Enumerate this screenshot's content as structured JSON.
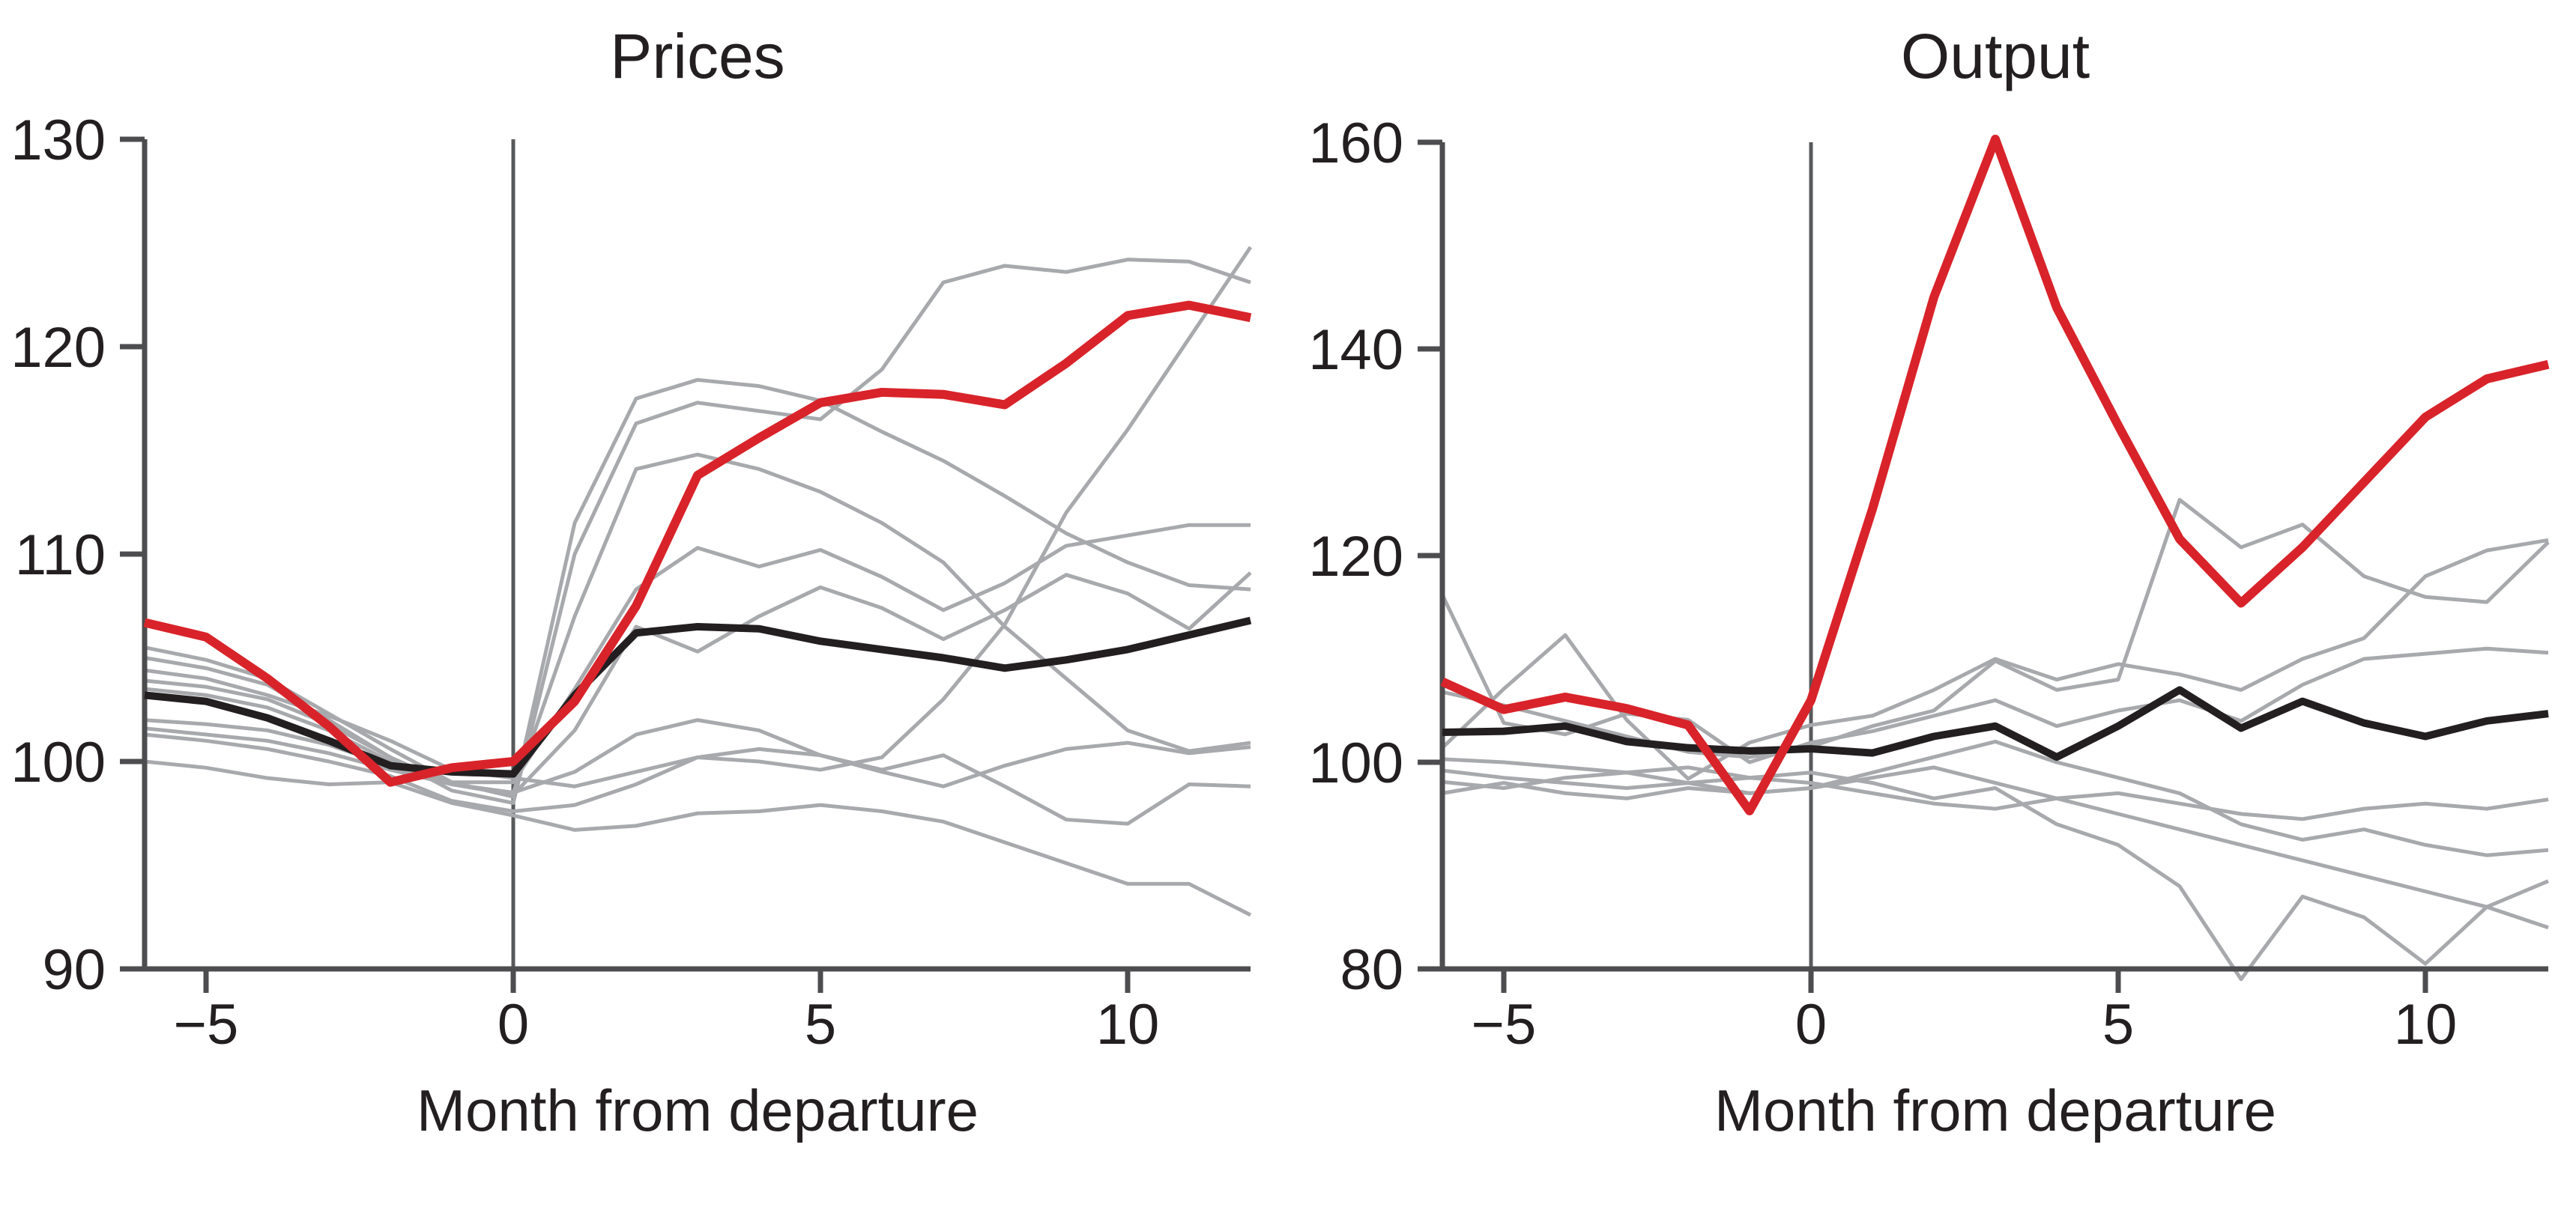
{
  "figure": {
    "description": "Two-panel line chart of Prices and Output indexed around month of departure; many gray episode lines, a black average line, and one highlighted red episode.",
    "panel_count": 2
  },
  "colors": {
    "highlight": "#d9232a",
    "average": "#231f20",
    "episode": "#a7a9ac",
    "axis": "#4d4d4f",
    "event_line": "#58595b",
    "background": "#ffffff"
  },
  "chart_data": [
    {
      "type": "line",
      "title": "Prices",
      "xlabel": "Month from departure",
      "ylabel": "",
      "x": [
        -6,
        -5,
        -4,
        -3,
        -2,
        -1,
        0,
        1,
        2,
        3,
        4,
        5,
        6,
        7,
        8,
        9,
        10,
        11,
        12
      ],
      "xlim": [
        -6,
        12
      ],
      "ylim": [
        90,
        130
      ],
      "xticks": [
        -5,
        0,
        5,
        10
      ],
      "yticks": [
        90,
        100,
        110,
        120,
        130
      ],
      "grid": false,
      "legend": "none",
      "vline_x": 0,
      "series": [
        {
          "name": "episode-a",
          "role": "background",
          "color": "#a7a9ac",
          "values": [
            105.5,
            104.9,
            104.0,
            102.3,
            100.6,
            99.0,
            98.3,
            111.5,
            117.5,
            118.4,
            118.1,
            117.4,
            115.9,
            114.5,
            112.8,
            111.0,
            109.6,
            108.5,
            108.3
          ]
        },
        {
          "name": "episode-b",
          "role": "background",
          "color": "#a7a9ac",
          "values": [
            105.0,
            104.5,
            103.7,
            102.0,
            100.2,
            98.6,
            98.0,
            110.0,
            116.3,
            117.3,
            116.9,
            116.5,
            118.9,
            123.1,
            123.9,
            123.6,
            124.2,
            124.1,
            123.1
          ]
        },
        {
          "name": "episode-c",
          "role": "background",
          "color": "#a7a9ac",
          "values": [
            104.4,
            104.0,
            103.2,
            102.2,
            101.0,
            99.6,
            99.2,
            98.8,
            99.5,
            100.2,
            100.0,
            99.6,
            100.2,
            103.0,
            106.6,
            112.0,
            116.0,
            120.4,
            124.8
          ]
        },
        {
          "name": "episode-d",
          "role": "background",
          "color": "#a7a9ac",
          "values": [
            103.9,
            103.6,
            103.0,
            101.8,
            100.2,
            98.9,
            98.5,
            107.0,
            114.1,
            114.8,
            114.1,
            113.0,
            111.5,
            109.6,
            106.5,
            104.0,
            101.5,
            100.5,
            100.9
          ]
        },
        {
          "name": "episode-e",
          "role": "background",
          "color": "#a7a9ac",
          "values": [
            103.5,
            103.2,
            102.6,
            101.5,
            100.0,
            99.0,
            99.0,
            103.5,
            108.3,
            110.3,
            109.4,
            110.2,
            108.9,
            107.3,
            108.6,
            110.4,
            110.9,
            111.4,
            111.4
          ]
        },
        {
          "name": "episode-f",
          "role": "background",
          "color": "#a7a9ac",
          "values": [
            102.0,
            101.8,
            101.5,
            100.8,
            99.8,
            98.9,
            98.4,
            101.5,
            106.5,
            105.3,
            107.0,
            108.4,
            107.4,
            105.9,
            107.3,
            109.0,
            108.1,
            106.4,
            109.1
          ]
        },
        {
          "name": "episode-g",
          "role": "background",
          "color": "#a7a9ac",
          "values": [
            101.6,
            101.3,
            101.0,
            100.4,
            99.6,
            98.9,
            98.5,
            99.5,
            101.3,
            102.0,
            101.5,
            100.3,
            99.6,
            100.3,
            98.8,
            97.2,
            97.0,
            98.9,
            98.8
          ]
        },
        {
          "name": "episode-h",
          "role": "background",
          "color": "#a7a9ac",
          "values": [
            101.3,
            101.0,
            100.6,
            100.0,
            99.3,
            98.1,
            97.6,
            97.9,
            98.9,
            100.2,
            100.6,
            100.3,
            99.5,
            98.8,
            99.8,
            100.6,
            100.9,
            100.4,
            100.7
          ]
        },
        {
          "name": "episode-i",
          "role": "background",
          "color": "#a7a9ac",
          "values": [
            100.0,
            99.7,
            99.2,
            98.9,
            99.0,
            98.0,
            97.4,
            96.7,
            96.9,
            97.5,
            97.6,
            97.9,
            97.6,
            97.1,
            96.1,
            95.1,
            94.1,
            94.1,
            92.6
          ]
        },
        {
          "name": "average",
          "role": "average",
          "color": "#231f20",
          "values": [
            103.2,
            102.9,
            102.1,
            101.0,
            99.8,
            99.5,
            99.4,
            103.2,
            106.2,
            106.5,
            106.4,
            105.8,
            105.4,
            105.0,
            104.5,
            104.9,
            105.4,
            106.1,
            106.8
          ]
        },
        {
          "name": "highlighted-episode",
          "role": "highlight",
          "color": "#d9232a",
          "values": [
            106.7,
            106.0,
            104.0,
            101.7,
            99.0,
            99.7,
            100.0,
            102.9,
            107.5,
            113.8,
            115.6,
            117.3,
            117.8,
            117.7,
            117.2,
            119.2,
            121.5,
            122.0,
            121.4
          ]
        }
      ]
    },
    {
      "type": "line",
      "title": "Output",
      "xlabel": "Month from departure",
      "ylabel": "",
      "x": [
        -6,
        -5,
        -4,
        -3,
        -2,
        -1,
        0,
        1,
        2,
        3,
        4,
        5,
        6,
        7,
        8,
        9,
        10,
        11,
        12
      ],
      "xlim": [
        -6,
        12
      ],
      "ylim": [
        80,
        160
      ],
      "xticks": [
        -5,
        0,
        5,
        10
      ],
      "yticks": [
        80,
        100,
        120,
        140,
        160
      ],
      "grid": false,
      "legend": "none",
      "vline_x": 0,
      "series": [
        {
          "name": "episode-a",
          "role": "background",
          "color": "#a7a9ac",
          "values": [
            116.2,
            103.8,
            102.7,
            104.7,
            104.1,
            100.0,
            101.9,
            103.0,
            104.5,
            106.0,
            103.5,
            105.0,
            106.0,
            104.0,
            107.5,
            110.0,
            110.5,
            111.0,
            110.6
          ]
        },
        {
          "name": "episode-b",
          "role": "background",
          "color": "#a7a9ac",
          "values": [
            106.8,
            105.5,
            104.0,
            102.5,
            101.0,
            100.5,
            101.5,
            103.5,
            105.0,
            109.8,
            107.0,
            108.0,
            125.4,
            120.8,
            123.0,
            118.0,
            116.0,
            115.5,
            121.3
          ]
        },
        {
          "name": "episode-c",
          "role": "background",
          "color": "#a7a9ac",
          "values": [
            101.4,
            107.1,
            112.3,
            104.1,
            98.4,
            101.9,
            103.6,
            104.5,
            107.0,
            110.0,
            108.0,
            109.5,
            108.5,
            107.0,
            110.0,
            112.0,
            118.0,
            120.5,
            121.5
          ]
        },
        {
          "name": "episode-d",
          "role": "background",
          "color": "#a7a9ac",
          "values": [
            100.3,
            100.0,
            99.5,
            99.0,
            99.5,
            98.5,
            99.0,
            98.0,
            96.5,
            97.5,
            94.0,
            92.0,
            88.0,
            79.0,
            87.0,
            85.0,
            80.5,
            86.0,
            88.5
          ]
        },
        {
          "name": "episode-e",
          "role": "background",
          "color": "#a7a9ac",
          "values": [
            99.2,
            98.5,
            98.0,
            97.5,
            98.0,
            97.0,
            97.5,
            98.5,
            99.5,
            98.0,
            96.5,
            95.0,
            93.5,
            92.0,
            90.5,
            89.0,
            87.5,
            86.0,
            84.0
          ]
        },
        {
          "name": "episode-f",
          "role": "background",
          "color": "#a7a9ac",
          "values": [
            98.1,
            97.5,
            98.5,
            99.0,
            98.0,
            98.5,
            98.0,
            97.0,
            96.0,
            95.5,
            96.5,
            97.0,
            96.0,
            95.0,
            94.5,
            95.5,
            96.0,
            95.5,
            96.4
          ]
        },
        {
          "name": "episode-g",
          "role": "background",
          "color": "#a7a9ac",
          "values": [
            97.0,
            98.0,
            97.0,
            96.5,
            97.5,
            97.0,
            97.5,
            99.0,
            100.5,
            102.0,
            100.0,
            98.5,
            97.0,
            94.0,
            92.5,
            93.5,
            92.0,
            91.0,
            91.5
          ]
        },
        {
          "name": "average",
          "role": "average",
          "color": "#231f20",
          "values": [
            102.9,
            103.0,
            103.5,
            102.0,
            101.4,
            101.1,
            101.3,
            100.9,
            102.5,
            103.5,
            100.5,
            103.5,
            107.0,
            103.3,
            105.9,
            103.8,
            102.5,
            104.0,
            104.7
          ]
        },
        {
          "name": "highlighted-episode",
          "role": "highlight",
          "color": "#d9232a",
          "values": [
            107.8,
            105.1,
            106.3,
            105.2,
            103.6,
            95.3,
            106.0,
            124.5,
            145.0,
            160.3,
            144.0,
            132.6,
            121.6,
            115.4,
            120.8,
            127.1,
            133.4,
            137.1,
            138.5
          ]
        }
      ]
    }
  ]
}
